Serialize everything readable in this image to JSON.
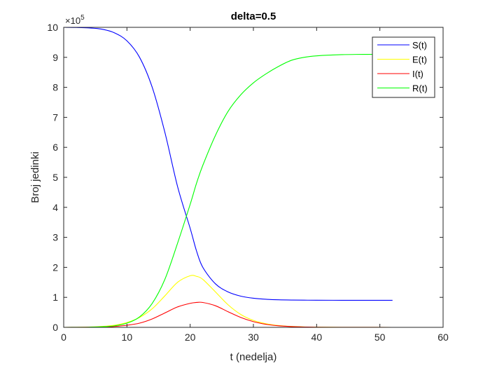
{
  "chart_data": {
    "type": "line",
    "title": "delta=0.5",
    "xlabel": "t (nedelja)",
    "ylabel": "Broj jedinki",
    "xlim": [
      0,
      60
    ],
    "ylim": [
      0,
      1000000
    ],
    "x_ticks": [
      0,
      10,
      20,
      30,
      40,
      50,
      60
    ],
    "y_ticks": [
      0,
      100000,
      200000,
      300000,
      400000,
      500000,
      600000,
      700000,
      800000,
      900000,
      1000000
    ],
    "y_tick_labels": [
      "0",
      "1",
      "2",
      "3",
      "4",
      "5",
      "6",
      "7",
      "8",
      "9",
      "10"
    ],
    "y_exponent_base": "×10",
    "y_exponent_power": "5",
    "grid": false,
    "legend_position": "top-right",
    "x": [
      0,
      2,
      4,
      6,
      8,
      10,
      12,
      14,
      16,
      18,
      20,
      21,
      22,
      24,
      26,
      28,
      30,
      32,
      34,
      36,
      38,
      40,
      44,
      48,
      52
    ],
    "series": [
      {
        "name": "S(t)",
        "color": "#0000ff",
        "values": [
          1000000,
          999500,
          998000,
          994000,
          982000,
          955000,
          900000,
          800000,
          650000,
          470000,
          330000,
          255000,
          200000,
          145000,
          118000,
          104000,
          97000,
          93500,
          91800,
          91000,
          90600,
          90400,
          90200,
          90100,
          90000
        ]
      },
      {
        "name": "E(t)",
        "color": "#ffff00",
        "values": [
          0,
          300,
          1000,
          3000,
          7000,
          16000,
          33000,
          62000,
          105000,
          150000,
          172000,
          170000,
          160000,
          118000,
          75000,
          43000,
          23000,
          12000,
          6000,
          3000,
          1500,
          700,
          200,
          50,
          10
        ]
      },
      {
        "name": "I(t)",
        "color": "#ff0000",
        "values": [
          0,
          100,
          400,
          1200,
          3000,
          7000,
          14000,
          28000,
          48000,
          68000,
          80000,
          83000,
          83000,
          72000,
          52000,
          33000,
          19000,
          10000,
          5000,
          2500,
          1200,
          600,
          150,
          40,
          10
        ]
      },
      {
        "name": "R(t)",
        "color": "#00ff00",
        "values": [
          0,
          200,
          600,
          1800,
          5000,
          14000,
          35000,
          80000,
          160000,
          280000,
          410000,
          480000,
          540000,
          640000,
          720000,
          775000,
          815000,
          845000,
          870000,
          890000,
          900000,
          905000,
          909000,
          910000,
          910000
        ]
      }
    ]
  }
}
